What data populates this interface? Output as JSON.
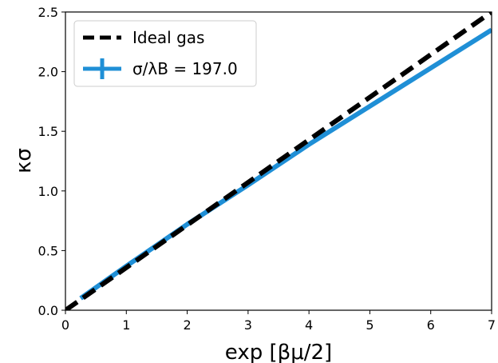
{
  "chart_data": {
    "type": "line",
    "title": "",
    "xlabel": "exp [βμ/2]",
    "ylabel": "κσ",
    "xlim": [
      0,
      7
    ],
    "ylim": [
      0,
      2.5
    ],
    "xticks": [
      0,
      1,
      2,
      3,
      4,
      5,
      6,
      7
    ],
    "yticks": [
      0.0,
      0.5,
      1.0,
      1.5,
      2.0,
      2.5
    ],
    "xtick_labels": [
      "0",
      "1",
      "2",
      "3",
      "4",
      "5",
      "6",
      "7"
    ],
    "ytick_labels": [
      "0.0",
      "0.5",
      "1.0",
      "1.5",
      "2.0",
      "2.5"
    ],
    "grid": false,
    "legend_position": "top-left",
    "series": [
      {
        "name": "Ideal gas",
        "style": "dashed",
        "color": "#000000",
        "x": [
          0,
          7
        ],
        "y": [
          0,
          2.5
        ]
      },
      {
        "name": "σ/λB = 197.0",
        "style": "solid",
        "color": "#1f8fd6",
        "x": [
          0.25,
          1,
          2,
          3,
          4,
          5,
          6,
          7
        ],
        "y": [
          0.1,
          0.37,
          0.72,
          1.05,
          1.39,
          1.71,
          2.03,
          2.35
        ]
      }
    ]
  }
}
